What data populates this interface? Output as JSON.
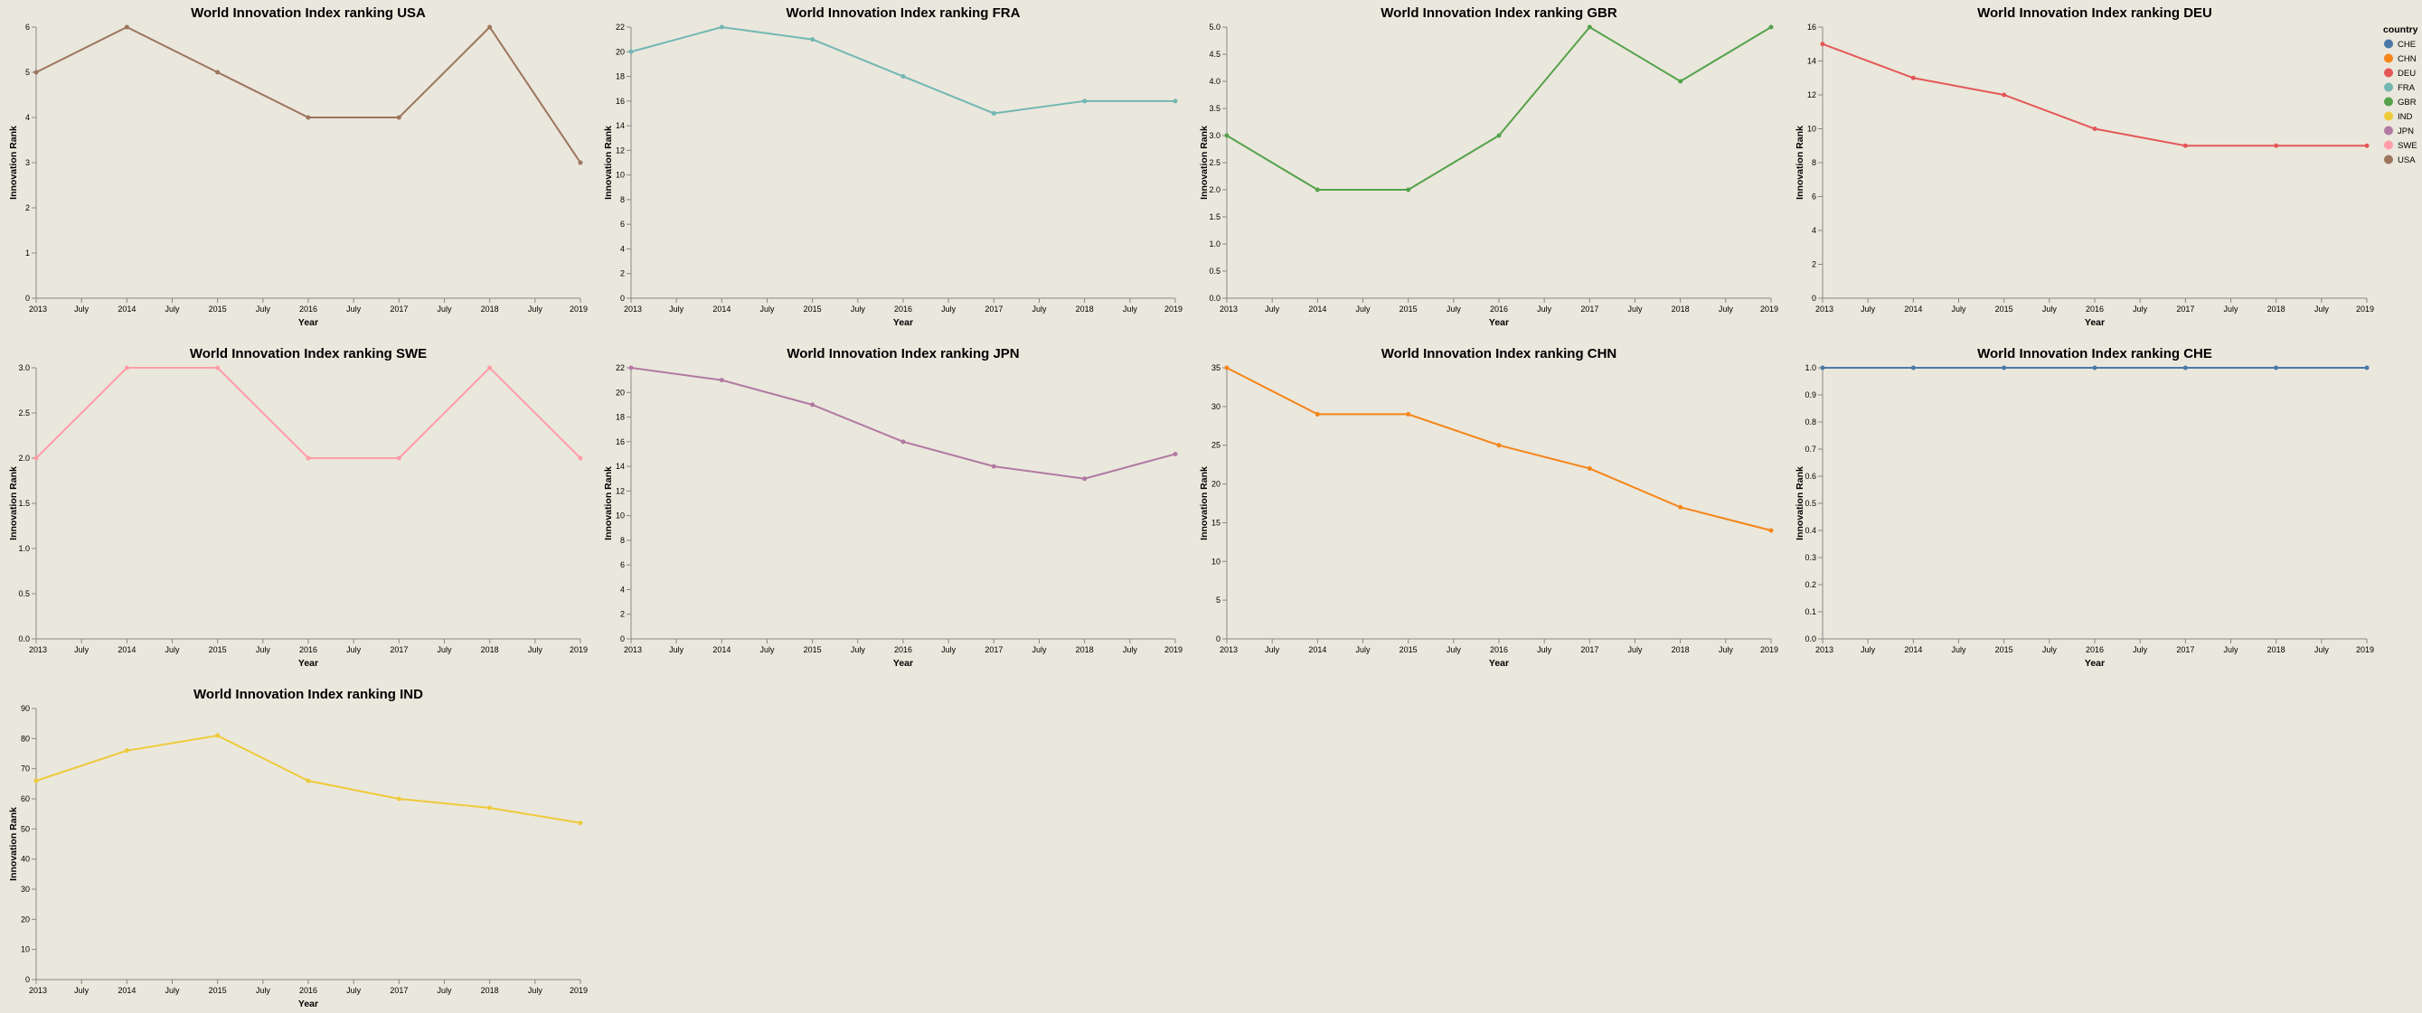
{
  "legend": {
    "title": "country",
    "items": [
      {
        "label": "CHE",
        "color": "#4c78a8"
      },
      {
        "label": "CHN",
        "color": "#f58518"
      },
      {
        "label": "DEU",
        "color": "#e45756"
      },
      {
        "label": "FRA",
        "color": "#72b7b2"
      },
      {
        "label": "GBR",
        "color": "#54a24b"
      },
      {
        "label": "IND",
        "color": "#eeca3b"
      },
      {
        "label": "JPN",
        "color": "#b279a2"
      },
      {
        "label": "SWE",
        "color": "#ff9da6"
      },
      {
        "label": "USA",
        "color": "#9d755d"
      }
    ]
  },
  "chart_data": [
    {
      "type": "line",
      "title": "World Innovation Index ranking USA",
      "xlabel": "Year",
      "ylabel": "Innovation Rank",
      "x": [
        2013,
        2014,
        2015,
        2016,
        2017,
        2018,
        2019
      ],
      "values": [
        5,
        6,
        5,
        4,
        4,
        6,
        3
      ],
      "ylim": [
        0,
        6
      ],
      "yticks": [
        0,
        1,
        2,
        3,
        4,
        5,
        6
      ],
      "color": "#9d755d"
    },
    {
      "type": "line",
      "title": "World Innovation Index ranking FRA",
      "xlabel": "Year",
      "ylabel": "Innovation Rank",
      "x": [
        2013,
        2014,
        2015,
        2016,
        2017,
        2018,
        2019
      ],
      "values": [
        20,
        22,
        21,
        18,
        15,
        16,
        16
      ],
      "ylim": [
        0,
        22
      ],
      "yticks": [
        0,
        2,
        4,
        6,
        8,
        10,
        12,
        14,
        16,
        18,
        20,
        22
      ],
      "color": "#72b7b2"
    },
    {
      "type": "line",
      "title": "World Innovation Index ranking GBR",
      "xlabel": "Year",
      "ylabel": "Innovation Rank",
      "x": [
        2013,
        2014,
        2015,
        2016,
        2017,
        2018,
        2019
      ],
      "values": [
        3,
        2,
        2,
        3,
        5,
        4,
        5
      ],
      "ylim": [
        0,
        5
      ],
      "yticks": [
        0,
        0.5,
        1,
        1.5,
        2,
        2.5,
        3,
        3.5,
        4,
        4.5,
        5
      ],
      "ydecimals": 1,
      "color": "#54a24b"
    },
    {
      "type": "line",
      "title": "World Innovation Index ranking DEU",
      "xlabel": "Year",
      "ylabel": "Innovation Rank",
      "x": [
        2013,
        2014,
        2015,
        2016,
        2017,
        2018,
        2019
      ],
      "values": [
        15,
        13,
        12,
        10,
        9,
        9,
        9
      ],
      "ylim": [
        0,
        16
      ],
      "yticks": [
        0,
        2,
        4,
        6,
        8,
        10,
        12,
        14,
        16
      ],
      "color": "#e45756"
    },
    {
      "type": "line",
      "title": "World Innovation Index ranking SWE",
      "xlabel": "Year",
      "ylabel": "Innovation Rank",
      "x": [
        2013,
        2014,
        2015,
        2016,
        2017,
        2018,
        2019
      ],
      "values": [
        2,
        3,
        3,
        2,
        2,
        3,
        2
      ],
      "ylim": [
        0,
        3
      ],
      "yticks": [
        0,
        0.5,
        1,
        1.5,
        2,
        2.5,
        3
      ],
      "ydecimals": 1,
      "color": "#ff9da6"
    },
    {
      "type": "line",
      "title": "World Innovation Index ranking JPN",
      "xlabel": "Year",
      "ylabel": "Innovation Rank",
      "x": [
        2013,
        2014,
        2015,
        2016,
        2017,
        2018,
        2019
      ],
      "values": [
        22,
        21,
        19,
        16,
        14,
        13,
        15
      ],
      "ylim": [
        0,
        22
      ],
      "yticks": [
        0,
        2,
        4,
        6,
        8,
        10,
        12,
        14,
        16,
        18,
        20,
        22
      ],
      "color": "#b279a2"
    },
    {
      "type": "line",
      "title": "World Innovation Index ranking CHN",
      "xlabel": "Year",
      "ylabel": "Innovation Rank",
      "x": [
        2013,
        2014,
        2015,
        2016,
        2017,
        2018,
        2019
      ],
      "values": [
        35,
        29,
        29,
        25,
        22,
        17,
        14
      ],
      "ylim": [
        0,
        35
      ],
      "yticks": [
        0,
        5,
        10,
        15,
        20,
        25,
        30,
        35
      ],
      "color": "#f58518"
    },
    {
      "type": "line",
      "title": "World Innovation Index ranking CHE",
      "xlabel": "Year",
      "ylabel": "Innovation Rank",
      "x": [
        2013,
        2014,
        2015,
        2016,
        2017,
        2018,
        2019
      ],
      "values": [
        1,
        1,
        1,
        1,
        1,
        1,
        1
      ],
      "ylim": [
        0,
        1
      ],
      "yticks": [
        0,
        0.1,
        0.2,
        0.3,
        0.4,
        0.5,
        0.6,
        0.7,
        0.8,
        0.9,
        1
      ],
      "ydecimals": 1,
      "color": "#4c78a8"
    },
    {
      "type": "line",
      "title": "World Innovation Index ranking IND",
      "xlabel": "Year",
      "ylabel": "Innovation Rank",
      "x": [
        2013,
        2014,
        2015,
        2016,
        2017,
        2018,
        2019
      ],
      "values": [
        66,
        76,
        81,
        66,
        60,
        57,
        52
      ],
      "ylim": [
        0,
        90
      ],
      "yticks": [
        0,
        10,
        20,
        30,
        40,
        50,
        60,
        70,
        80,
        90
      ],
      "color": "#eeca3b"
    }
  ],
  "x_axis": {
    "year_labels": [
      "2013",
      "2014",
      "2015",
      "2016",
      "2017",
      "2018",
      "2019"
    ],
    "mid_label": "July"
  }
}
